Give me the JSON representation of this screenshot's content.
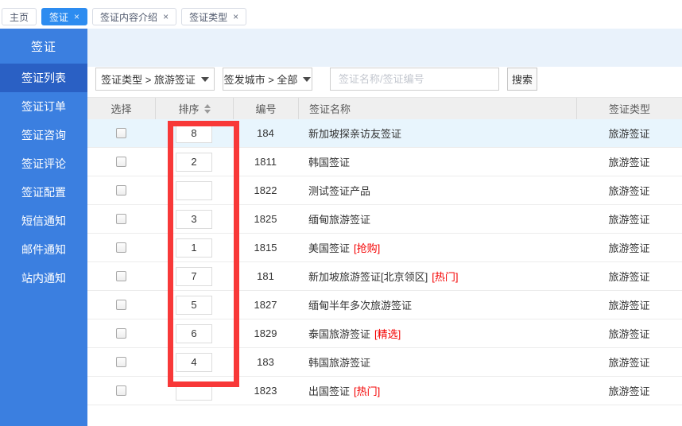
{
  "colors": {
    "accent": "#2d8cf0",
    "sidebar": "#3b7fe0",
    "sidebarActive": "#2a60c4",
    "band": "#e9f2fb",
    "rowHighlight": "#e8f5fd",
    "tagRed": "#f40000",
    "annotation": "#f83838"
  },
  "tabbar": {
    "tabs": [
      {
        "label": "主页",
        "active": false,
        "closable": false
      },
      {
        "label": "签证",
        "active": true,
        "closable": true
      },
      {
        "label": "签证内容介绍",
        "active": false,
        "closable": true
      },
      {
        "label": "签证类型",
        "active": false,
        "closable": true
      }
    ]
  },
  "sidebar": {
    "header": "签证",
    "items": [
      {
        "label": "签证列表",
        "active": true
      },
      {
        "label": "签证订单",
        "active": false
      },
      {
        "label": "签证咨询",
        "active": false
      },
      {
        "label": "签证评论",
        "active": false
      },
      {
        "label": "签证配置",
        "active": false
      },
      {
        "label": "短信通知",
        "active": false
      },
      {
        "label": "邮件通知",
        "active": false
      },
      {
        "label": "站内通知",
        "active": false
      }
    ]
  },
  "toolbar": {
    "visa_type_filter": "签证类型 > 旅游签证",
    "city_filter": "签发城市 > 全部",
    "search_placeholder": "签证名称/签证编号",
    "search_button": "搜索"
  },
  "table": {
    "columns": [
      "选择",
      "排序",
      "编号",
      "签证名称",
      "签证类型"
    ],
    "rows": [
      {
        "sort": "8",
        "id": "184",
        "name": "新加坡探亲访友签证",
        "tag": "",
        "type": "旅游签证",
        "highlighted": true
      },
      {
        "sort": "2",
        "id": "1811",
        "name": "韩国签证",
        "tag": "",
        "type": "旅游签证",
        "highlighted": false
      },
      {
        "sort": "",
        "id": "1822",
        "name": "测试签证产品",
        "tag": "",
        "type": "旅游签证",
        "highlighted": false
      },
      {
        "sort": "3",
        "id": "1825",
        "name": "缅甸旅游签证",
        "tag": "",
        "type": "旅游签证",
        "highlighted": false
      },
      {
        "sort": "1",
        "id": "1815",
        "name": "美国签证",
        "tag": "[抢购]",
        "type": "旅游签证",
        "highlighted": false
      },
      {
        "sort": "7",
        "id": "181",
        "name": "新加坡旅游签证[北京领区]",
        "tag": "[热门]",
        "type": "旅游签证",
        "highlighted": false
      },
      {
        "sort": "5",
        "id": "1827",
        "name": "缅甸半年多次旅游签证",
        "tag": "",
        "type": "旅游签证",
        "highlighted": false
      },
      {
        "sort": "6",
        "id": "1829",
        "name": "泰国旅游签证",
        "tag": "[精选]",
        "type": "旅游签证",
        "highlighted": false
      },
      {
        "sort": "4",
        "id": "183",
        "name": "韩国旅游签证",
        "tag": "",
        "type": "旅游签证",
        "highlighted": false
      },
      {
        "sort": "",
        "id": "1823",
        "name": "出国签证",
        "tag": "[热门]",
        "type": "旅游签证",
        "highlighted": false
      }
    ]
  },
  "annotation": {
    "type": "red-rectangle",
    "target": "sort-column"
  }
}
